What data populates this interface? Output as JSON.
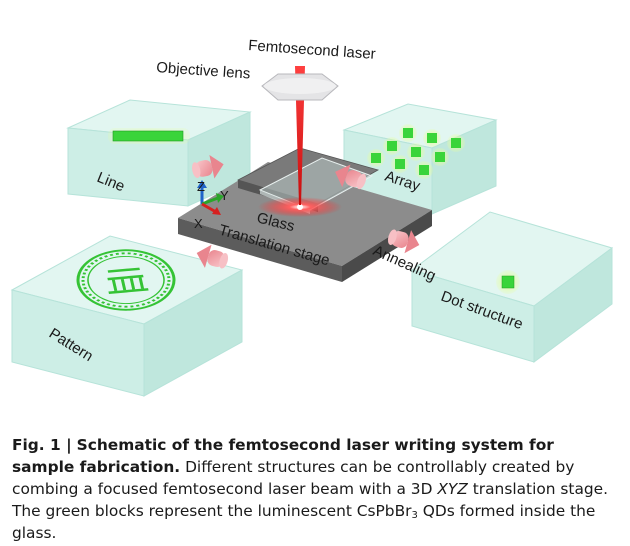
{
  "figure": {
    "labels": {
      "femtosecond_laser": "Femtosecond laser",
      "objective_lens": "Objective lens",
      "line": "Line",
      "array": "Array",
      "glass": "Glass",
      "translation_stage": "Translation stage",
      "annealing": "Annealing",
      "dot_structure": "Dot structure",
      "pattern": "Pattern",
      "axis_x": "X",
      "axis_y": "Y",
      "axis_z": "Z"
    },
    "colors": {
      "box_fill": "#cdeee6",
      "box_edge": "#9fd8cc",
      "qd_green": "#3ad43a",
      "laser_red": "#e01818",
      "stage": "#6b6b6b",
      "arrow_pink": "#f2a7ad"
    }
  },
  "caption": {
    "fig_no": "Fig. 1 |",
    "title": "Schematic of the femtosecond laser writing system for sample fabrication.",
    "part1": "Different structures can be controllably created by combing a focused femtosecond laser beam with a 3D",
    "xyz": "XYZ",
    "part2": "translation stage. The green blocks represent the luminescent CsPbBr",
    "sub3": "3",
    "part3": "QDs formed inside the glass."
  }
}
